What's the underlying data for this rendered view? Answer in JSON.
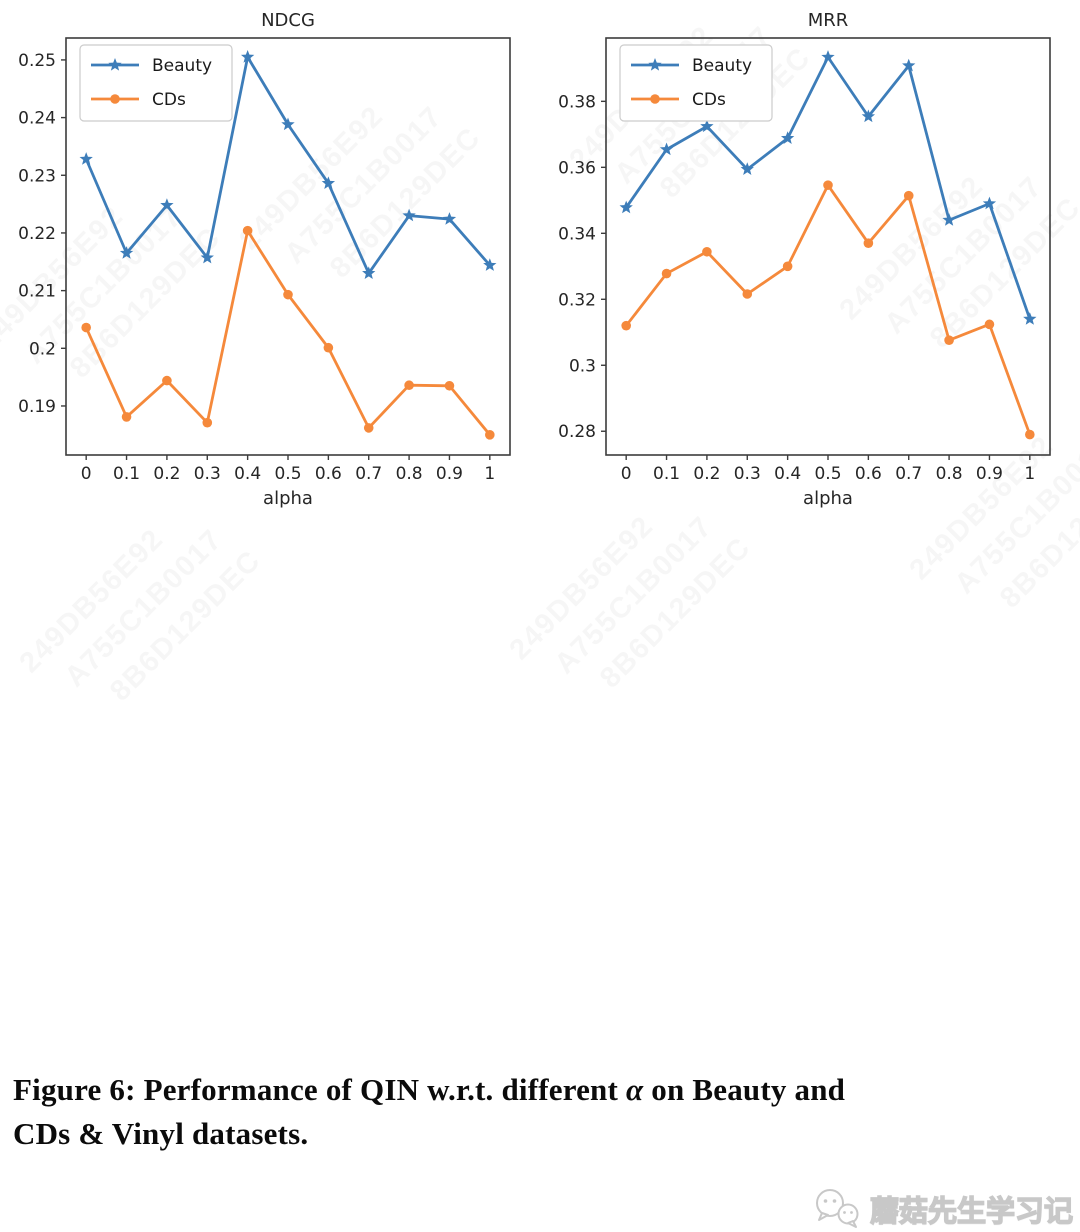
{
  "caption": {
    "prefix": "Figure 6: Performance of QIN w.r.t. different ",
    "alpha": "α",
    "suffix_line1": " on Beauty and",
    "line2": "CDs & Vinyl datasets."
  },
  "bottom_watermark": {
    "text": "蘑菇先生学习记",
    "icon": "wechat-chat-bubbles-icon"
  },
  "background_watermark_lines": [
    "249DB56E92",
    "A755C1B0017",
    "8B6D129DEC"
  ],
  "colors": {
    "beauty_line": "#3d7db9",
    "cds_line": "#f5893b",
    "axis_spine": "#3c3c3c",
    "tick_text": "#262626",
    "legend_border": "#cccccc"
  },
  "chart_data": [
    {
      "type": "line",
      "title": "NDCG",
      "xlabel": "alpha",
      "x": [
        0,
        0.1,
        0.2,
        0.3,
        0.4,
        0.5,
        0.6,
        0.7,
        0.8,
        0.9,
        1
      ],
      "xtick_labels": [
        "0",
        "0.1",
        "0.2",
        "0.3",
        "0.4",
        "0.5",
        "0.6",
        "0.7",
        "0.8",
        "0.9",
        "1"
      ],
      "xlim": [
        -0.05,
        1.05
      ],
      "ylim": [
        0.1815,
        0.2538
      ],
      "yticks": [
        0.19,
        0.2,
        0.21,
        0.22,
        0.23,
        0.24,
        0.25
      ],
      "ytick_labels": [
        "0.19",
        "0.2",
        "0.21",
        "0.22",
        "0.23",
        "0.24",
        "0.25"
      ],
      "grid": false,
      "legend_position": "upper-left",
      "series": [
        {
          "name": "Beauty",
          "marker": "star",
          "color": "#3d7db9",
          "values": [
            0.2328,
            0.2165,
            0.2248,
            0.2157,
            0.2505,
            0.2388,
            0.2286,
            0.213,
            0.223,
            0.2224,
            0.2144
          ]
        },
        {
          "name": "CDs",
          "marker": "circle",
          "color": "#f5893b",
          "values": [
            0.2036,
            0.1881,
            0.1944,
            0.1871,
            0.2204,
            0.2093,
            0.2001,
            0.1862,
            0.1936,
            0.1935,
            0.185
          ]
        }
      ]
    },
    {
      "type": "line",
      "title": "MRR",
      "xlabel": "alpha",
      "x": [
        0,
        0.1,
        0.2,
        0.3,
        0.4,
        0.5,
        0.6,
        0.7,
        0.8,
        0.9,
        1
      ],
      "xtick_labels": [
        "0",
        "0.1",
        "0.2",
        "0.3",
        "0.4",
        "0.5",
        "0.6",
        "0.7",
        "0.8",
        "0.9",
        "1"
      ],
      "xlim": [
        -0.05,
        1.05
      ],
      "ylim": [
        0.2728,
        0.3992
      ],
      "yticks": [
        0.28,
        0.3,
        0.32,
        0.34,
        0.36,
        0.38
      ],
      "ytick_labels": [
        "0.28",
        "0.3",
        "0.32",
        "0.34",
        "0.36",
        "0.38"
      ],
      "grid": false,
      "legend_position": "upper-left",
      "series": [
        {
          "name": "Beauty",
          "marker": "star",
          "color": "#3d7db9",
          "values": [
            0.3478,
            0.3654,
            0.3724,
            0.3594,
            0.3688,
            0.3934,
            0.3754,
            0.3908,
            0.344,
            0.349,
            0.314
          ]
        },
        {
          "name": "CDs",
          "marker": "circle",
          "color": "#f5893b",
          "values": [
            0.312,
            0.3278,
            0.3344,
            0.3216,
            0.33,
            0.3546,
            0.337,
            0.3514,
            0.3076,
            0.3124,
            0.279
          ]
        }
      ]
    }
  ]
}
